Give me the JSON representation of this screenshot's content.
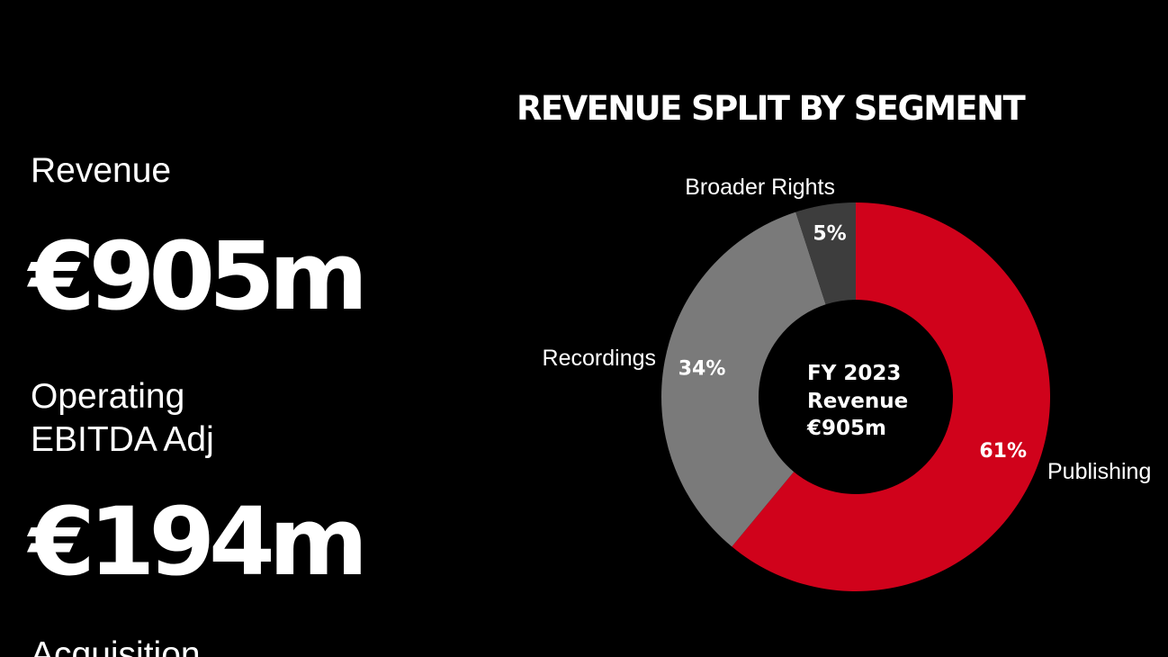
{
  "left_panel": {
    "revenue_label": "Revenue",
    "revenue_value": "€905m",
    "ebitda_label_line1": "Operating",
    "ebitda_label_line2": "EBITDA Adj",
    "ebitda_value": "€194m",
    "cut_off_label": "Acquisition"
  },
  "chart_data": {
    "type": "pie",
    "title": "REVENUE SPLIT BY SEGMENT",
    "center_label": [
      "FY 2023",
      "Revenue",
      "€905m"
    ],
    "categories": [
      "Publishing",
      "Recordings",
      "Broader Rights"
    ],
    "values": [
      61,
      34,
      5
    ],
    "value_labels": [
      "61%",
      "34%",
      "5%"
    ],
    "colors": [
      "#d0021b",
      "#7a7a7a",
      "#3d3d3d"
    ],
    "donut": true
  },
  "colors": {
    "background": "#000000",
    "text": "#ffffff",
    "accent": "#d0021b"
  }
}
